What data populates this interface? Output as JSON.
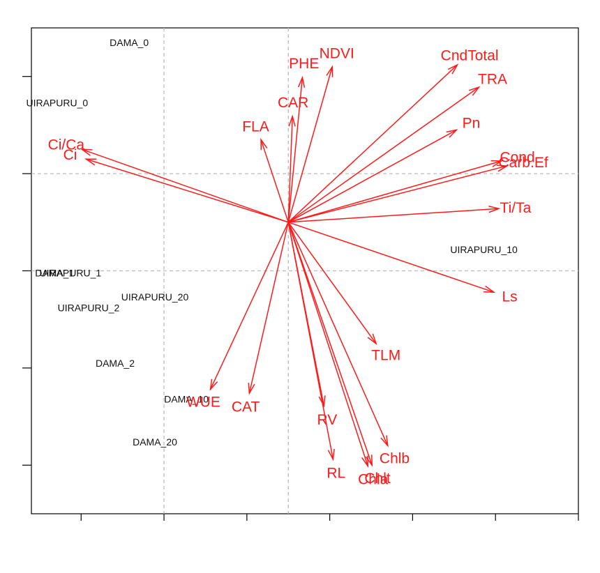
{
  "chart_data": {
    "type": "scatter",
    "subtype": "biplot",
    "grid": true,
    "colors": {
      "frame": "#000000",
      "grid": "#bbbbbb",
      "arrow": "#ff1a1a",
      "obs_text": "#111111"
    },
    "xlim": [
      -3.1,
      3.5
    ],
    "ylim": [
      -3.0,
      2.0
    ],
    "x_ticks": [
      -2.5,
      -1.5,
      -0.5,
      0.5,
      1.5,
      2.5,
      3.5
    ],
    "y_ticks": [
      -2.5,
      -1.5,
      -0.5,
      0.5,
      1.5
    ],
    "reference_lines": {
      "x": [
        -1.5,
        0.0
      ],
      "y": [
        -0.5,
        0.5
      ]
    },
    "observations": [
      {
        "label": "DAMA_0",
        "x": -1.92,
        "y": 1.85
      },
      {
        "label": "UIRAPURU_0",
        "x": -2.79,
        "y": 1.23
      },
      {
        "label": "DAMA_1",
        "x": -2.82,
        "y": -0.52
      },
      {
        "label": "UIRAPURU_1",
        "x": -2.63,
        "y": -0.52
      },
      {
        "label": "UIRAPURU_20",
        "x": -1.61,
        "y": -0.77
      },
      {
        "label": "UIRAPURU_2",
        "x": -2.41,
        "y": -0.88
      },
      {
        "label": "UIRAPURU_10",
        "x": 2.36,
        "y": -0.28
      },
      {
        "label": "DAMA_2",
        "x": -2.09,
        "y": -1.45
      },
      {
        "label": "DAMA_10",
        "x": -1.23,
        "y": -1.82
      },
      {
        "label": "DAMA_20",
        "x": -1.61,
        "y": -2.26
      }
    ],
    "variables": [
      {
        "label": "NDVI",
        "x": 0.53,
        "y": 1.6
      },
      {
        "label": "PHE",
        "x": 0.17,
        "y": 1.49
      },
      {
        "label": "CAR",
        "x": 0.05,
        "y": 1.09
      },
      {
        "label": "FLA",
        "x": -0.33,
        "y": 0.85
      },
      {
        "label": "CndTotal",
        "x": 2.04,
        "y": 1.62
      },
      {
        "label": "TRA",
        "x": 2.3,
        "y": 1.39
      },
      {
        "label": "Pn",
        "x": 2.03,
        "y": 0.95
      },
      {
        "label": "Cond",
        "x": 2.57,
        "y": 0.63
      },
      {
        "label": "Carb.Ef",
        "x": 2.64,
        "y": 0.58
      },
      {
        "label": "Ci/Ca",
        "x": -2.49,
        "y": 0.75
      },
      {
        "label": "Ci",
        "x": -2.44,
        "y": 0.65
      },
      {
        "label": "Ti/Ta",
        "x": 2.54,
        "y": 0.14
      },
      {
        "label": "Ls",
        "x": 2.48,
        "y": -0.72
      },
      {
        "label": "TLM",
        "x": 1.06,
        "y": -1.25
      },
      {
        "label": "WUE",
        "x": -0.94,
        "y": -1.72
      },
      {
        "label": "CAT",
        "x": -0.47,
        "y": -1.76
      },
      {
        "label": "RV",
        "x": 0.43,
        "y": -1.89
      },
      {
        "label": "RL",
        "x": 0.54,
        "y": -2.44
      },
      {
        "label": "Chlb",
        "x": 1.2,
        "y": -2.3
      },
      {
        "label": "Chla",
        "x": 0.96,
        "y": -2.51
      },
      {
        "label": "Chlt",
        "x": 1.01,
        "y": -2.5
      }
    ]
  }
}
